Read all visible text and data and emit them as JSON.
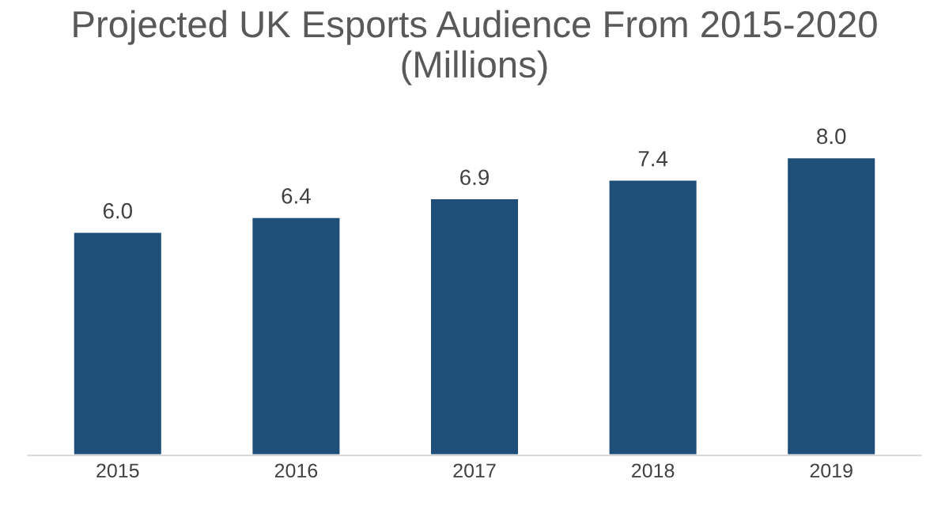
{
  "chart_data": {
    "type": "bar",
    "title": "Projected UK Esports Audience From 2015-2020\n(Millions)",
    "categories": [
      "2015",
      "2016",
      "2017",
      "2018",
      "2019"
    ],
    "values": [
      6.0,
      6.4,
      6.9,
      7.4,
      8.0
    ],
    "value_labels": [
      "6.0",
      "6.4",
      "6.9",
      "7.4",
      "8.0"
    ],
    "color": "#1f4e79",
    "tick_labels": "x",
    "grid": false,
    "legend": false
  }
}
